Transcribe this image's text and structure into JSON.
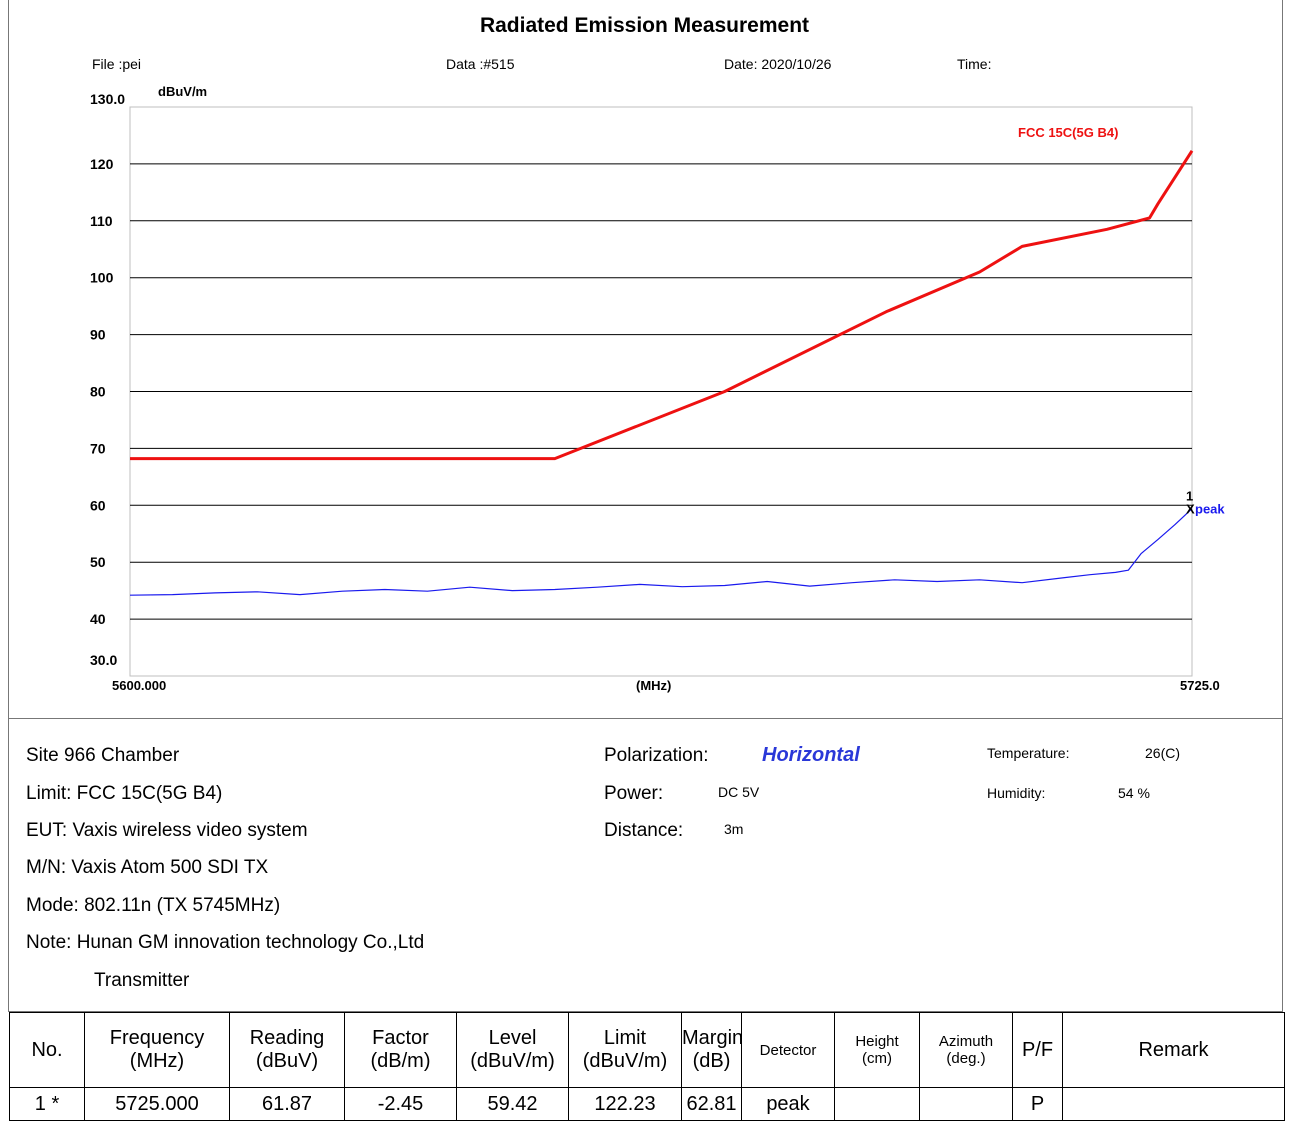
{
  "title": "Radiated Emission Measurement",
  "meta": {
    "file": "File :pei",
    "data": "Data :#515",
    "date": "Date: 2020/10/26",
    "time": "Time:"
  },
  "chart_data": {
    "type": "line",
    "ylabel": "dBuV/m",
    "xlabel": "(MHz)",
    "xlim": [
      5600.0,
      5725.0
    ],
    "x_start_label": "5600.000",
    "x_end_label": "5725.0",
    "ylim": [
      30.0,
      130.0
    ],
    "y_top_label": "130.0",
    "y_bottom_label": "30.0",
    "yticks": [
      40,
      50,
      60,
      70,
      80,
      90,
      100,
      110,
      120
    ],
    "grid": "horizontal",
    "series": [
      {
        "name": "FCC 15C(5G B4)",
        "color": "#ee1111",
        "x": [
          5600.0,
          5650.0,
          5670.0,
          5689.0,
          5700.0,
          5705.0,
          5715.0,
          5720.0,
          5721.0,
          5725.0
        ],
        "y": [
          68.2,
          68.2,
          80.0,
          94.0,
          101.0,
          105.5,
          108.5,
          110.5,
          113.0,
          122.3
        ]
      },
      {
        "name": "peak",
        "color": "#1a1aee",
        "x": [
          5600,
          5605,
          5610,
          5615,
          5620,
          5625,
          5630,
          5635,
          5640,
          5645,
          5650,
          5655,
          5660,
          5665,
          5670,
          5675,
          5680,
          5685,
          5690,
          5695,
          5700,
          5705,
          5710,
          5713,
          5716,
          5717.5,
          5719,
          5721,
          5723,
          5725
        ],
        "y": [
          44.2,
          44.3,
          44.6,
          44.8,
          44.3,
          44.9,
          45.2,
          44.9,
          45.6,
          45.0,
          45.2,
          45.6,
          46.1,
          45.7,
          45.9,
          46.6,
          45.8,
          46.4,
          46.9,
          46.6,
          46.9,
          46.4,
          47.3,
          47.8,
          48.2,
          48.6,
          51.5,
          54.0,
          56.6,
          59.4
        ]
      }
    ],
    "marker": {
      "index": "1",
      "x": 5725.0,
      "y": 59.42,
      "label": "peak"
    }
  },
  "info": {
    "site": "Site 966 Chamber",
    "limit": "Limit: FCC 15C(5G B4)",
    "eut": "EUT:  Vaxis wireless video system",
    "mn": "M/N:  Vaxis Atom 500 SDI TX",
    "mode": "Mode:  802.11n (TX 5745MHz)",
    "note": "Note:  Hunan GM innovation technology Co.,Ltd",
    "note2": "Transmitter",
    "pol_label": "Polarization:",
    "pol_value": "Horizontal",
    "power_label": "Power:",
    "power_value": "DC 5V",
    "distance_label": "Distance:",
    "distance_value": "3m",
    "temp_label": "Temperature:",
    "temp_value": "26(C)",
    "humidity_label": "Humidity:",
    "humidity_value": "54 %"
  },
  "table": {
    "headers": [
      {
        "l1": "No.",
        "l2": ""
      },
      {
        "l1": "Frequency",
        "l2": "(MHz)"
      },
      {
        "l1": "Reading",
        "l2": "(dBuV)"
      },
      {
        "l1": "Factor",
        "l2": "(dB/m)"
      },
      {
        "l1": "Level",
        "l2": "(dBuV/m)"
      },
      {
        "l1": "Limit",
        "l2": "(dBuV/m)"
      },
      {
        "l1": "Margin",
        "l2": "(dB)"
      },
      {
        "l1": "Detector",
        "l2": ""
      },
      {
        "l1": "Height",
        "l2": "(cm)"
      },
      {
        "l1": "Azimuth",
        "l2": "(deg.)"
      },
      {
        "l1": "P/F",
        "l2": ""
      },
      {
        "l1": "Remark",
        "l2": ""
      }
    ],
    "row": [
      "1  *",
      "5725.000",
      "61.87",
      "-2.45",
      "59.42",
      "122.23",
      "62.81",
      "peak",
      "",
      "",
      "P",
      ""
    ]
  }
}
